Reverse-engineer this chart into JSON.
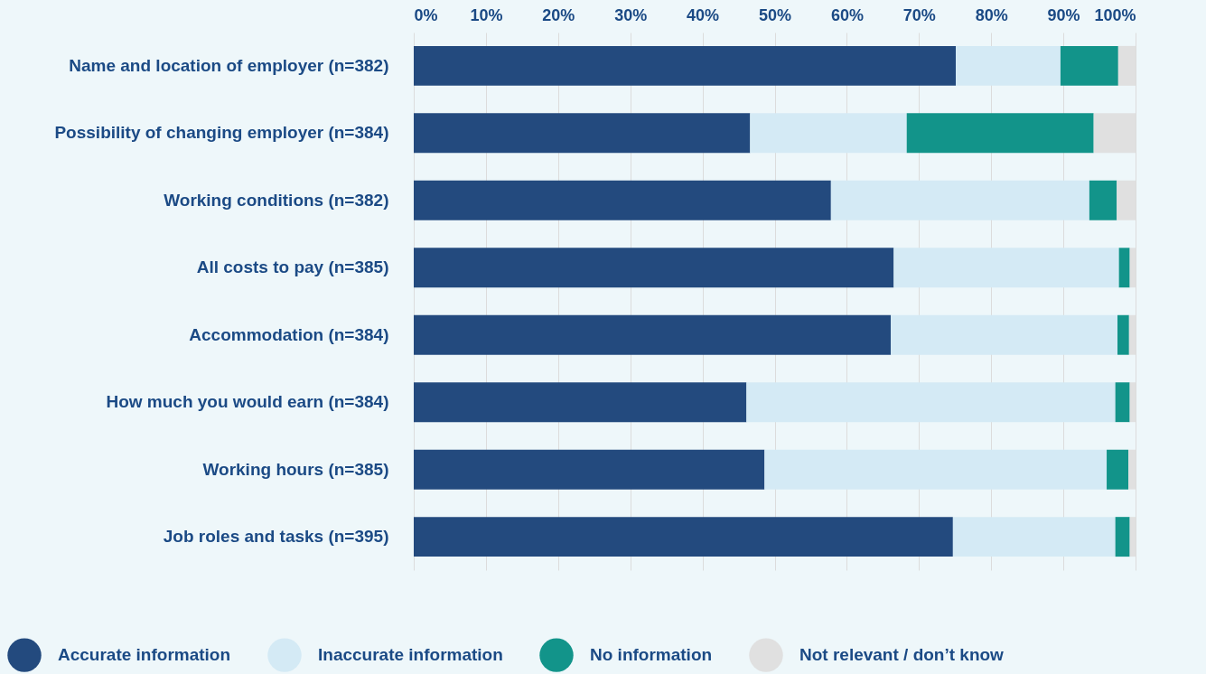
{
  "chart_data": {
    "type": "bar",
    "orientation": "horizontal",
    "stacked": true,
    "categories": [
      "Name and location of employer (n=382)",
      "Possibility of changing employer (n=384)",
      "Working conditions (n=382)",
      "All costs to pay (n=385)",
      "Accommodation (n=384)",
      "How much you would earn (n=384)",
      "Working hours (n=385)",
      "Job roles and tasks (n=395)"
    ],
    "series": [
      {
        "name": "Accurate information",
        "color": "#234a7e",
        "values": [
          75.1,
          46.6,
          57.8,
          66.5,
          66.1,
          46.1,
          48.6,
          74.7
        ]
      },
      {
        "name": "Inaccurate information",
        "color": "#d4eaf5",
        "values": [
          14.5,
          21.7,
          35.8,
          31.2,
          31.4,
          51.1,
          47.4,
          22.5
        ]
      },
      {
        "name": "No information",
        "color": "#12948a",
        "values": [
          8.0,
          25.9,
          3.8,
          1.5,
          1.6,
          2.0,
          3.0,
          2.0
        ]
      },
      {
        "name": "Not relevant / don’t know",
        "color": "#e0e0e0",
        "values": [
          2.4,
          5.8,
          2.6,
          0.8,
          0.9,
          0.8,
          1.0,
          0.8
        ]
      }
    ],
    "xlim": [
      0,
      100
    ],
    "xticks": [
      {
        "value": 0,
        "label": "0%"
      },
      {
        "value": 10,
        "label": "10%"
      },
      {
        "value": 20,
        "label": "20%"
      },
      {
        "value": 30,
        "label": "30%"
      },
      {
        "value": 40,
        "label": "40%"
      },
      {
        "value": 50,
        "label": "50%"
      },
      {
        "value": 60,
        "label": "60%"
      },
      {
        "value": 70,
        "label": "70%"
      },
      {
        "value": 80,
        "label": "80%"
      },
      {
        "value": 90,
        "label": "90%"
      },
      {
        "value": 100,
        "label": "100%"
      }
    ],
    "grid": "x",
    "legend": "bottom"
  }
}
